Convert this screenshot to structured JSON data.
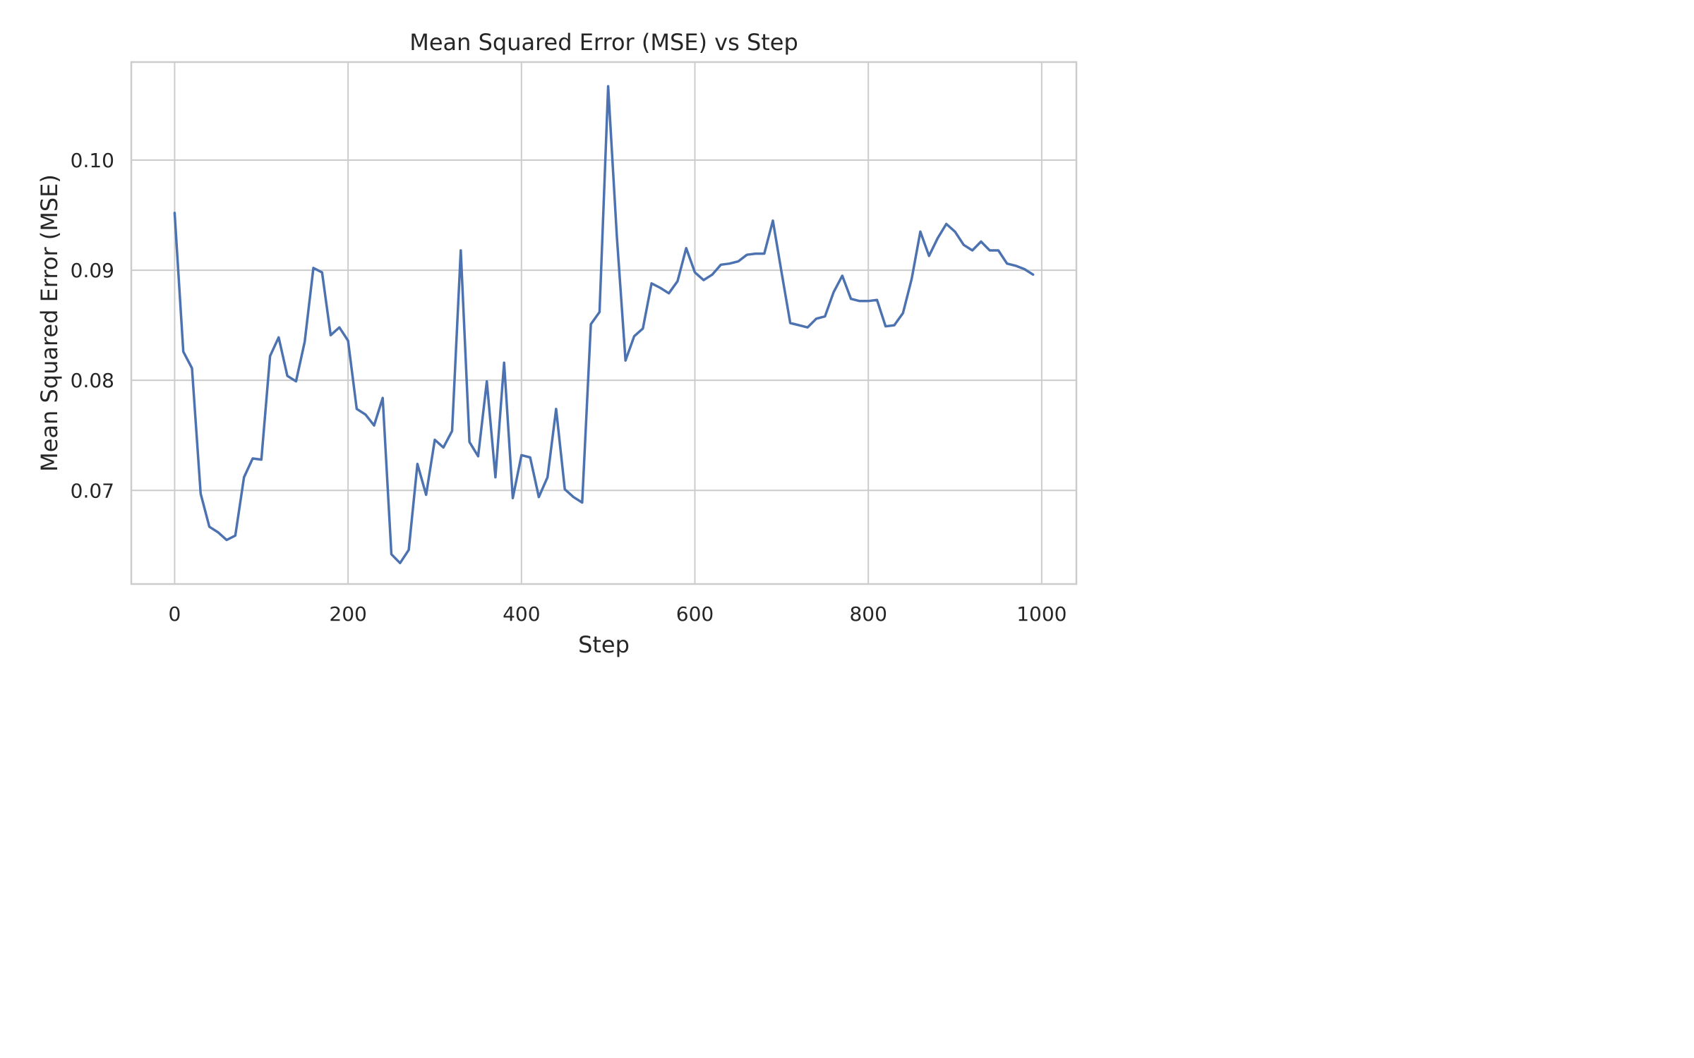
{
  "chart_data": {
    "type": "line",
    "title": "Mean Squared Error (MSE) vs Step",
    "xlabel": "Step",
    "ylabel": "Mean Squared Error (MSE)",
    "xlim": [
      -50,
      1040
    ],
    "ylim": [
      0.0615,
      0.1089
    ],
    "xticks": [
      0,
      200,
      400,
      600,
      800,
      1000
    ],
    "xtick_labels": [
      "0",
      "200",
      "400",
      "600",
      "800",
      "1000"
    ],
    "yticks": [
      0.07,
      0.08,
      0.09,
      0.1
    ],
    "ytick_labels": [
      "0.07",
      "0.08",
      "0.09",
      "0.10"
    ],
    "grid": true,
    "legend": "none",
    "series": [
      {
        "color": "#4c72b0",
        "x": [
          0,
          10,
          20,
          30,
          40,
          50,
          60,
          70,
          80,
          90,
          100,
          110,
          120,
          130,
          140,
          150,
          160,
          170,
          180,
          190,
          200,
          210,
          220,
          230,
          240,
          250,
          260,
          270,
          280,
          290,
          300,
          310,
          320,
          330,
          340,
          350,
          360,
          370,
          380,
          390,
          400,
          410,
          420,
          430,
          440,
          450,
          460,
          470,
          480,
          490,
          500,
          510,
          520,
          530,
          540,
          550,
          560,
          570,
          580,
          590,
          600,
          610,
          620,
          630,
          640,
          650,
          660,
          670,
          680,
          690,
          700,
          710,
          720,
          730,
          740,
          750,
          760,
          770,
          780,
          790,
          800,
          810,
          820,
          830,
          840,
          850,
          860,
          870,
          880,
          890,
          900,
          910,
          920,
          930,
          940,
          950,
          960,
          970,
          980,
          990
        ],
        "y": [
          0.0952,
          0.0826,
          0.0811,
          0.0697,
          0.0667,
          0.0662,
          0.0655,
          0.0659,
          0.0712,
          0.0729,
          0.0728,
          0.0822,
          0.0839,
          0.0804,
          0.0799,
          0.0835,
          0.0902,
          0.0898,
          0.0841,
          0.0848,
          0.0836,
          0.0774,
          0.0769,
          0.0759,
          0.0784,
          0.0642,
          0.0634,
          0.0646,
          0.0724,
          0.0696,
          0.0746,
          0.0739,
          0.0754,
          0.0918,
          0.0744,
          0.0731,
          0.0799,
          0.0712,
          0.0816,
          0.0693,
          0.0732,
          0.073,
          0.0694,
          0.0712,
          0.0774,
          0.0701,
          0.0694,
          0.0689,
          0.0851,
          0.0862,
          0.1067,
          0.0931,
          0.0818,
          0.084,
          0.0847,
          0.0888,
          0.0884,
          0.0879,
          0.089,
          0.092,
          0.0898,
          0.0891,
          0.0896,
          0.0905,
          0.0906,
          0.0908,
          0.0914,
          0.0915,
          0.0915,
          0.0945,
          0.0898,
          0.0852,
          0.085,
          0.0848,
          0.0856,
          0.0858,
          0.088,
          0.0895,
          0.0874,
          0.0872,
          0.0872,
          0.0873,
          0.0849,
          0.085,
          0.0861,
          0.0892,
          0.0935,
          0.0913,
          0.0929,
          0.0942,
          0.0935,
          0.0923,
          0.0918,
          0.0926,
          0.0918,
          0.0918,
          0.0906,
          0.0904,
          0.0901,
          0.0896
        ]
      }
    ]
  }
}
